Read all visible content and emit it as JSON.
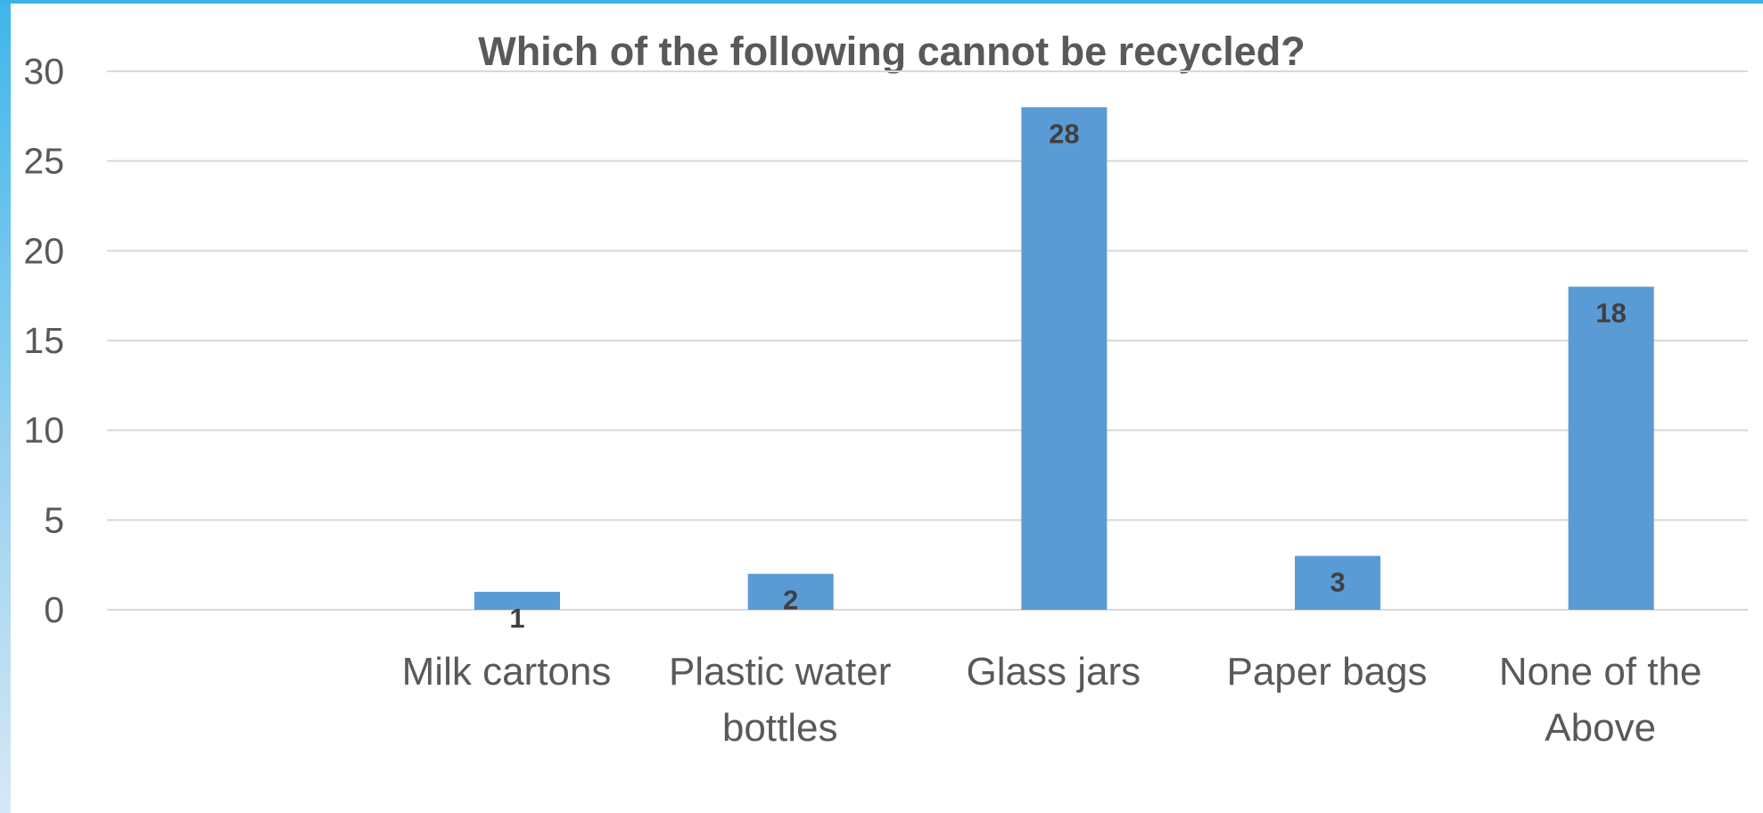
{
  "chart_data": {
    "type": "bar",
    "title": "Which of the following cannot be recycled?",
    "xlabel": "",
    "ylabel": "",
    "categories": [
      "",
      "Milk cartons",
      "Plastic water bottles",
      "Glass jars",
      "Paper bags",
      "None of the Above"
    ],
    "category_lines": [
      [],
      [
        "Milk cartons"
      ],
      [
        "Plastic water",
        "bottles"
      ],
      [
        "Glass jars"
      ],
      [
        "Paper bags"
      ],
      [
        "None of the",
        "Above"
      ]
    ],
    "values": [
      null,
      1,
      2,
      28,
      3,
      18
    ],
    "data_labels": [
      "",
      "1",
      "2",
      "28",
      "3",
      "18"
    ],
    "ylim": [
      0,
      30
    ],
    "yticks": [
      0,
      5,
      10,
      15,
      20,
      25,
      30
    ],
    "grid": true,
    "legend": "none",
    "colors": {
      "bar": "#5b9bd5",
      "grid": "#d9d9d9",
      "text": "#595959",
      "data_label": "#404040"
    }
  }
}
